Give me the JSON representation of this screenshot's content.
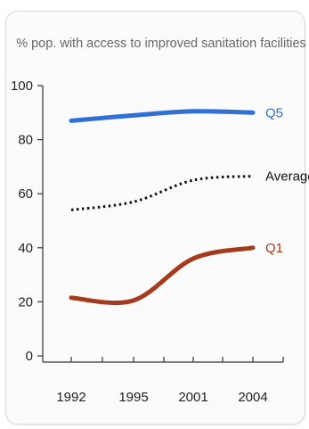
{
  "chart_data": {
    "type": "line",
    "title": "% pop. with access to improved sanitation facilities",
    "xlabel": "",
    "ylabel": "",
    "ylim": [
      0,
      100
    ],
    "yticks": [
      0,
      20,
      40,
      60,
      80,
      100
    ],
    "xticks": [
      "1992",
      "1995",
      "2001",
      "2004"
    ],
    "grid": false,
    "legend": "inline-right",
    "series": [
      {
        "name": "Q5",
        "color": "#2f6fd6",
        "style": "solid",
        "x": [
          1992,
          1995,
          2001,
          2004
        ],
        "y": [
          87,
          89,
          90.5,
          90
        ]
      },
      {
        "name": "Average",
        "color": "#111111",
        "style": "dotted",
        "x": [
          1992,
          1995,
          2001,
          2004
        ],
        "y": [
          54,
          57,
          65,
          66.5
        ]
      },
      {
        "name": "Q1",
        "color": "#a63a1c",
        "style": "solid",
        "x": [
          1992,
          1995,
          2001,
          2004
        ],
        "y": [
          21.5,
          20.5,
          36,
          40
        ]
      }
    ]
  }
}
